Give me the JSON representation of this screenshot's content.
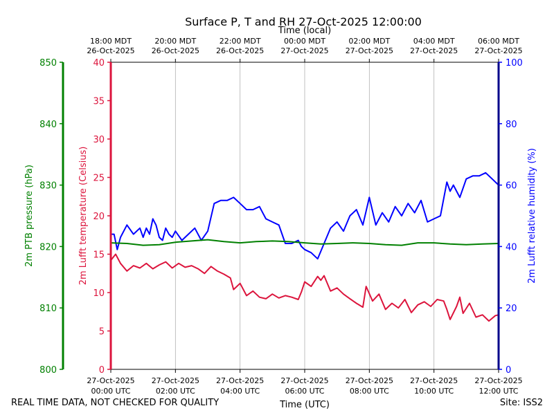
{
  "title": "Surface P, T and RH 27-Oct-2025 12:00:00",
  "footer": {
    "left": "REAL TIME DATA, NOT CHECKED FOR QUALITY",
    "right": "Site: ISS2"
  },
  "chart_data": {
    "type": "line",
    "title": "Surface P, T and RH 27-Oct-2025 12:00:00",
    "xlabel": "Time (UTC)",
    "x2label": "Time (local)",
    "xlim": [
      0,
      12
    ],
    "grid": "vertical lines at bottom ticks",
    "x_ticks_bottom": [
      {
        "x": 0,
        "l1": "27-Oct-2025",
        "l2": "00:00 UTC"
      },
      {
        "x": 2,
        "l1": "27-Oct-2025",
        "l2": "02:00 UTC"
      },
      {
        "x": 4,
        "l1": "27-Oct-2025",
        "l2": "04:00 UTC"
      },
      {
        "x": 6,
        "l1": "27-Oct-2025",
        "l2": "06:00 UTC"
      },
      {
        "x": 8,
        "l1": "27-Oct-2025",
        "l2": "08:00 UTC"
      },
      {
        "x": 10,
        "l1": "27-Oct-2025",
        "l2": "10:00 UTC"
      },
      {
        "x": 12,
        "l1": "27-Oct-2025",
        "l2": "12:00 UTC"
      }
    ],
    "x_ticks_top": [
      {
        "x": 0,
        "l1": "18:00 MDT",
        "l2": "26-Oct-2025"
      },
      {
        "x": 2,
        "l1": "20:00 MDT",
        "l2": "26-Oct-2025"
      },
      {
        "x": 4,
        "l1": "22:00 MDT",
        "l2": "26-Oct-2025"
      },
      {
        "x": 6,
        "l1": "00:00 MDT",
        "l2": "27-Oct-2025"
      },
      {
        "x": 8,
        "l1": "02:00 MDT",
        "l2": "27-Oct-2025"
      },
      {
        "x": 10,
        "l1": "04:00 MDT",
        "l2": "27-Oct-2025"
      },
      {
        "x": 12,
        "l1": "06:00 MDT",
        "l2": "27-Oct-2025"
      }
    ],
    "axes": {
      "pressure": {
        "label": "2m PTB pressure (hPa)",
        "ylim": [
          800,
          850
        ],
        "ticks": [
          800,
          810,
          820,
          830,
          840,
          850
        ],
        "color": "#008000",
        "side": "left-outer"
      },
      "temperature": {
        "label": "2m Lufft temperature (Celsius)",
        "ylim": [
          0,
          40
        ],
        "ticks": [
          0,
          5,
          10,
          15,
          20,
          25,
          30,
          35,
          40
        ],
        "color": "#dc143c",
        "side": "left-inner"
      },
      "humidity": {
        "label": "2m Lufft relative humidity (%)",
        "ylim": [
          0,
          100
        ],
        "ticks": [
          0,
          20,
          40,
          60,
          80,
          100
        ],
        "color": "#0000ff",
        "side": "right"
      }
    },
    "series": [
      {
        "axis": "pressure",
        "color": "#008000",
        "x": [
          0,
          0.5,
          1,
          1.5,
          2,
          2.5,
          3,
          3.5,
          4,
          4.5,
          5,
          5.5,
          6,
          6.5,
          7,
          7.5,
          8,
          8.5,
          9,
          9.5,
          10,
          10.5,
          11,
          11.5,
          12
        ],
        "y": [
          820.6,
          820.5,
          820.2,
          820.3,
          820.7,
          820.9,
          821.1,
          820.8,
          820.6,
          820.8,
          820.9,
          820.8,
          820.6,
          820.4,
          820.5,
          820.6,
          820.5,
          820.3,
          820.2,
          820.6,
          820.6,
          820.4,
          820.3,
          820.4,
          820.5
        ]
      },
      {
        "axis": "temperature",
        "color": "#dc143c",
        "x": [
          0,
          0.15,
          0.3,
          0.5,
          0.7,
          0.9,
          1.1,
          1.3,
          1.5,
          1.7,
          1.9,
          2.1,
          2.3,
          2.5,
          2.7,
          2.9,
          3.1,
          3.3,
          3.5,
          3.7,
          3.8,
          4.0,
          4.2,
          4.4,
          4.6,
          4.8,
          5.0,
          5.2,
          5.4,
          5.6,
          5.8,
          5.9,
          6.0,
          6.2,
          6.4,
          6.5,
          6.6,
          6.8,
          7.0,
          7.2,
          7.4,
          7.6,
          7.8,
          7.9,
          8.1,
          8.3,
          8.5,
          8.7,
          8.9,
          9.1,
          9.3,
          9.5,
          9.7,
          9.9,
          10.1,
          10.3,
          10.4,
          10.5,
          10.7,
          10.8,
          10.9,
          11.1,
          11.3,
          11.5,
          11.7,
          11.9,
          12
        ],
        "y": [
          14.2,
          15.0,
          13.8,
          12.8,
          13.5,
          13.2,
          13.8,
          13.1,
          13.6,
          14.0,
          13.2,
          13.8,
          13.3,
          13.5,
          13.1,
          12.5,
          13.4,
          12.8,
          12.4,
          11.9,
          10.4,
          11.2,
          9.6,
          10.2,
          9.4,
          9.2,
          9.8,
          9.3,
          9.6,
          9.4,
          9.1,
          10.1,
          11.4,
          10.8,
          12.1,
          11.6,
          12.2,
          10.2,
          10.6,
          9.8,
          9.2,
          8.6,
          8.1,
          10.8,
          8.9,
          9.8,
          7.8,
          8.6,
          8.0,
          9.1,
          7.4,
          8.4,
          8.8,
          8.2,
          9.1,
          8.9,
          7.8,
          6.5,
          8.2,
          9.4,
          7.3,
          8.6,
          6.8,
          7.1,
          6.3,
          7.0,
          7.1
        ]
      },
      {
        "axis": "humidity",
        "color": "#0000ff",
        "x": [
          0,
          0.1,
          0.2,
          0.3,
          0.5,
          0.7,
          0.9,
          1.0,
          1.1,
          1.2,
          1.3,
          1.4,
          1.5,
          1.6,
          1.7,
          1.8,
          1.9,
          2.0,
          2.2,
          2.4,
          2.6,
          2.8,
          3.0,
          3.2,
          3.4,
          3.6,
          3.8,
          4.0,
          4.2,
          4.4,
          4.6,
          4.8,
          5.0,
          5.2,
          5.4,
          5.6,
          5.8,
          5.9,
          6.0,
          6.2,
          6.4,
          6.6,
          6.8,
          7.0,
          7.2,
          7.4,
          7.6,
          7.8,
          8.0,
          8.2,
          8.4,
          8.6,
          8.8,
          9.0,
          9.2,
          9.4,
          9.6,
          9.8,
          10.0,
          10.2,
          10.4,
          10.5,
          10.6,
          10.8,
          11.0,
          11.2,
          11.4,
          11.6,
          11.8,
          12
        ],
        "y": [
          44,
          44,
          39,
          43,
          47,
          44,
          46,
          43,
          46,
          44,
          49,
          47,
          43,
          42,
          46,
          44,
          43,
          45,
          42,
          44,
          46,
          42,
          45,
          54,
          55,
          55,
          56,
          54,
          52,
          52,
          53,
          49,
          48,
          47,
          41,
          41,
          42,
          40,
          39,
          38,
          36,
          41,
          46,
          48,
          45,
          50,
          52,
          47,
          56,
          47,
          51,
          48,
          53,
          50,
          54,
          51,
          55,
          48,
          49,
          50,
          61,
          58,
          60,
          56,
          62,
          63,
          63,
          64,
          62,
          60
        ]
      }
    ]
  }
}
